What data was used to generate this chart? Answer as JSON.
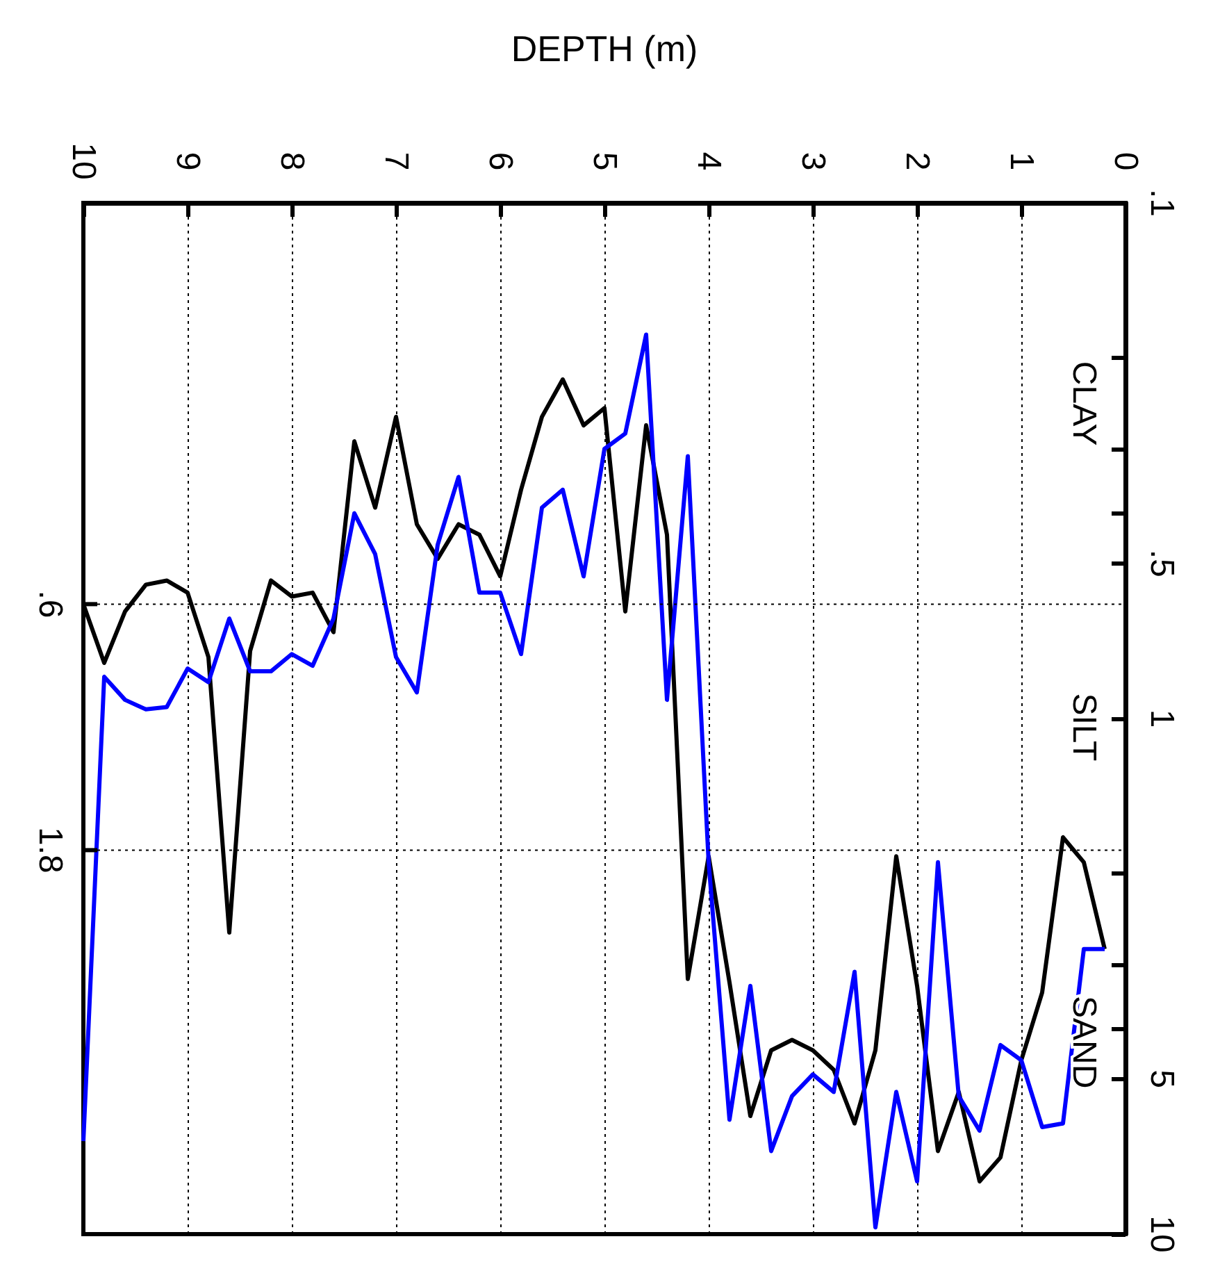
{
  "chart_data": {
    "type": "line",
    "xlabel": "DEPTH (m)",
    "xlim": [
      10,
      0
    ],
    "xticks": [
      0,
      1,
      2,
      3,
      4,
      5,
      6,
      7,
      8,
      9,
      10
    ],
    "ylim": [
      10,
      0.1
    ],
    "yticks": [
      {
        "value": 0.1,
        "label": ".1"
      },
      {
        "value": 0.2,
        "label": null
      },
      {
        "value": 0.3,
        "label": null
      },
      {
        "value": 0.4,
        "label": null
      },
      {
        "value": 0.5,
        "label": ".5"
      },
      {
        "value": 1,
        "label": "1"
      },
      {
        "value": 2,
        "label": null
      },
      {
        "value": 3,
        "label": null
      },
      {
        "value": 4,
        "label": null
      },
      {
        "value": 5,
        "label": "5"
      },
      {
        "value": 10,
        "label": "10"
      }
    ],
    "ref_lines": [
      {
        "axis": "y",
        "value": 0.6,
        "label": ".6",
        "line_style": "dotted"
      },
      {
        "axis": "y",
        "value": 1.8,
        "label": "1.8",
        "line_style": "dotted"
      }
    ],
    "log": "y",
    "grid": "x",
    "marker": "none",
    "line_style": "solid",
    "annotations": [
      "CLAY",
      "SILT",
      "SAND"
    ],
    "x": [
      0.2,
      0.4,
      0.6,
      0.8,
      1.0,
      1.2,
      1.4,
      1.6,
      1.8,
      2.0,
      2.2,
      2.4,
      2.6,
      2.8,
      3.0,
      3.2,
      3.4,
      3.6,
      3.8,
      4.0,
      4.2,
      4.4,
      4.6,
      4.8,
      5.0,
      5.2,
      5.4,
      5.6,
      5.8,
      6.0,
      6.2,
      6.4,
      6.6,
      6.8,
      7.0,
      7.2,
      7.4,
      7.6,
      7.8,
      8.0,
      8.2,
      8.4,
      8.6,
      8.8,
      9.0,
      9.2,
      9.4,
      9.6,
      9.8,
      10.0
    ],
    "series": [
      {
        "color": "#000000",
        "values": [
          2.8,
          1.9,
          1.7,
          3.4,
          4.6,
          7.1,
          7.9,
          5.3,
          6.9,
          3.3,
          1.85,
          4.4,
          6.1,
          4.8,
          4.4,
          4.2,
          4.4,
          5.9,
          3.25,
          1.85,
          3.2,
          0.44,
          0.27,
          0.62,
          0.25,
          0.27,
          0.22,
          0.26,
          0.36,
          0.53,
          0.44,
          0.42,
          0.49,
          0.42,
          0.26,
          0.39,
          0.29,
          0.68,
          0.57,
          0.58,
          0.54,
          0.74,
          2.6,
          0.76,
          0.57,
          0.54,
          0.55,
          0.62,
          0.78,
          0.6
        ]
      },
      {
        "color": "#0000ff",
        "values": [
          2.8,
          2.8,
          6.1,
          6.2,
          4.6,
          4.3,
          6.3,
          5.4,
          1.9,
          7.9,
          5.3,
          9.7,
          3.1,
          5.3,
          4.9,
          5.4,
          6.9,
          3.3,
          6.0,
          1.9,
          0.31,
          0.92,
          0.18,
          0.28,
          0.3,
          0.53,
          0.36,
          0.39,
          0.75,
          0.57,
          0.57,
          0.34,
          0.46,
          0.89,
          0.76,
          0.48,
          0.4,
          0.64,
          0.79,
          0.75,
          0.81,
          0.81,
          0.64,
          0.85,
          0.8,
          0.95,
          0.96,
          0.92,
          0.83,
          6.6
        ]
      }
    ]
  }
}
